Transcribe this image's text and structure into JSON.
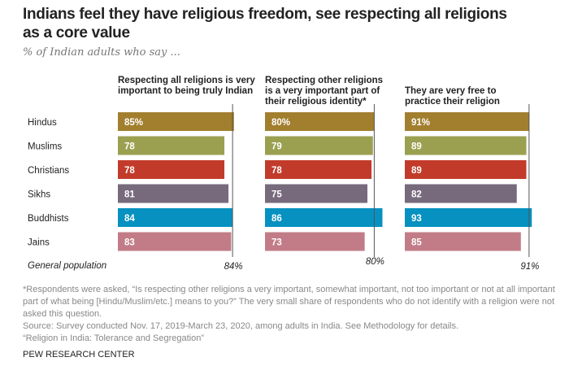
{
  "title": "Indians feel they have religious freedom, see respecting all religions as a core value",
  "subtitle": "% of Indian adults who say ...",
  "chart_data": {
    "type": "bar",
    "categories": [
      "Hindus",
      "Muslims",
      "Christians",
      "Sikhs",
      "Buddhists",
      "Jains"
    ],
    "colors": [
      "#a27f2e",
      "#9aa04f",
      "#c23b2a",
      "#776a7d",
      "#0691c1",
      "#c27c87"
    ],
    "series": [
      {
        "name": "Respecting all religions is very important to being truly Indian",
        "values": [
          85,
          78,
          78,
          81,
          84,
          83
        ],
        "reference": 84,
        "reference_label": "84%"
      },
      {
        "name": "Respecting other religions is a very important part of their religious identity*",
        "values": [
          80,
          79,
          78,
          75,
          86,
          73
        ],
        "reference": 80,
        "reference_label": "80%"
      },
      {
        "name": "They are very free to practice their religion",
        "values": [
          91,
          89,
          89,
          82,
          93,
          85
        ],
        "reference": 91,
        "reference_label": "91%"
      }
    ],
    "reference_row_label": "General population",
    "first_value_suffix": "%"
  },
  "notes": {
    "footnote": "*Respondents were asked, “Is respecting other religions a very important, somewhat important, not too important or not at all important part of what being [Hindu/Muslim/etc.] means to you?” The very small share of respondents who do not identify with a religion were not asked this question.",
    "source": "Source: Survey conducted Nov. 17, 2019-March 23, 2020, among adults in India. See Methodology for details.",
    "report": "“Religion in India: Tolerance and Segregation”",
    "brand": "PEW RESEARCH CENTER"
  }
}
